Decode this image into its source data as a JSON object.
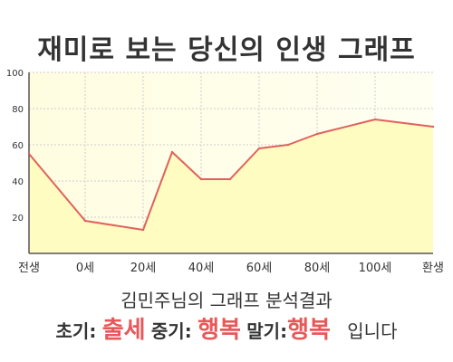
{
  "title": "재미로 보는 당신의 인생 그래프",
  "chart_data": {
    "type": "area",
    "x_labels": [
      "전생",
      "0세",
      "20세",
      "40세",
      "60세",
      "80세",
      "100세",
      "환생"
    ],
    "points": [
      {
        "x": "전생",
        "y": 55
      },
      {
        "x": "0세",
        "y": 18
      },
      {
        "x": "20세",
        "y": 13
      },
      {
        "x": "30세",
        "y": 56
      },
      {
        "x": "40세",
        "y": 41
      },
      {
        "x": "50세",
        "y": 41
      },
      {
        "x": "60세",
        "y": 58
      },
      {
        "x": "70세",
        "y": 60
      },
      {
        "x": "80세",
        "y": 66
      },
      {
        "x": "100세",
        "y": 74
      },
      {
        "x": "환생",
        "y": 70
      }
    ],
    "ylim": [
      0,
      100
    ],
    "y_ticks": [
      20,
      40,
      60,
      80,
      100
    ],
    "grid": true,
    "line_color": "#e0615c",
    "fill_color": "#fffcc2"
  },
  "subtitle": "김민주님의 그래프 분석결과",
  "result": {
    "early_label": "초기:",
    "early_value": "출세",
    "mid_label": "중기:",
    "mid_value": "행복",
    "late_label": "말기:",
    "late_value": "행복",
    "ending": "입니다"
  }
}
